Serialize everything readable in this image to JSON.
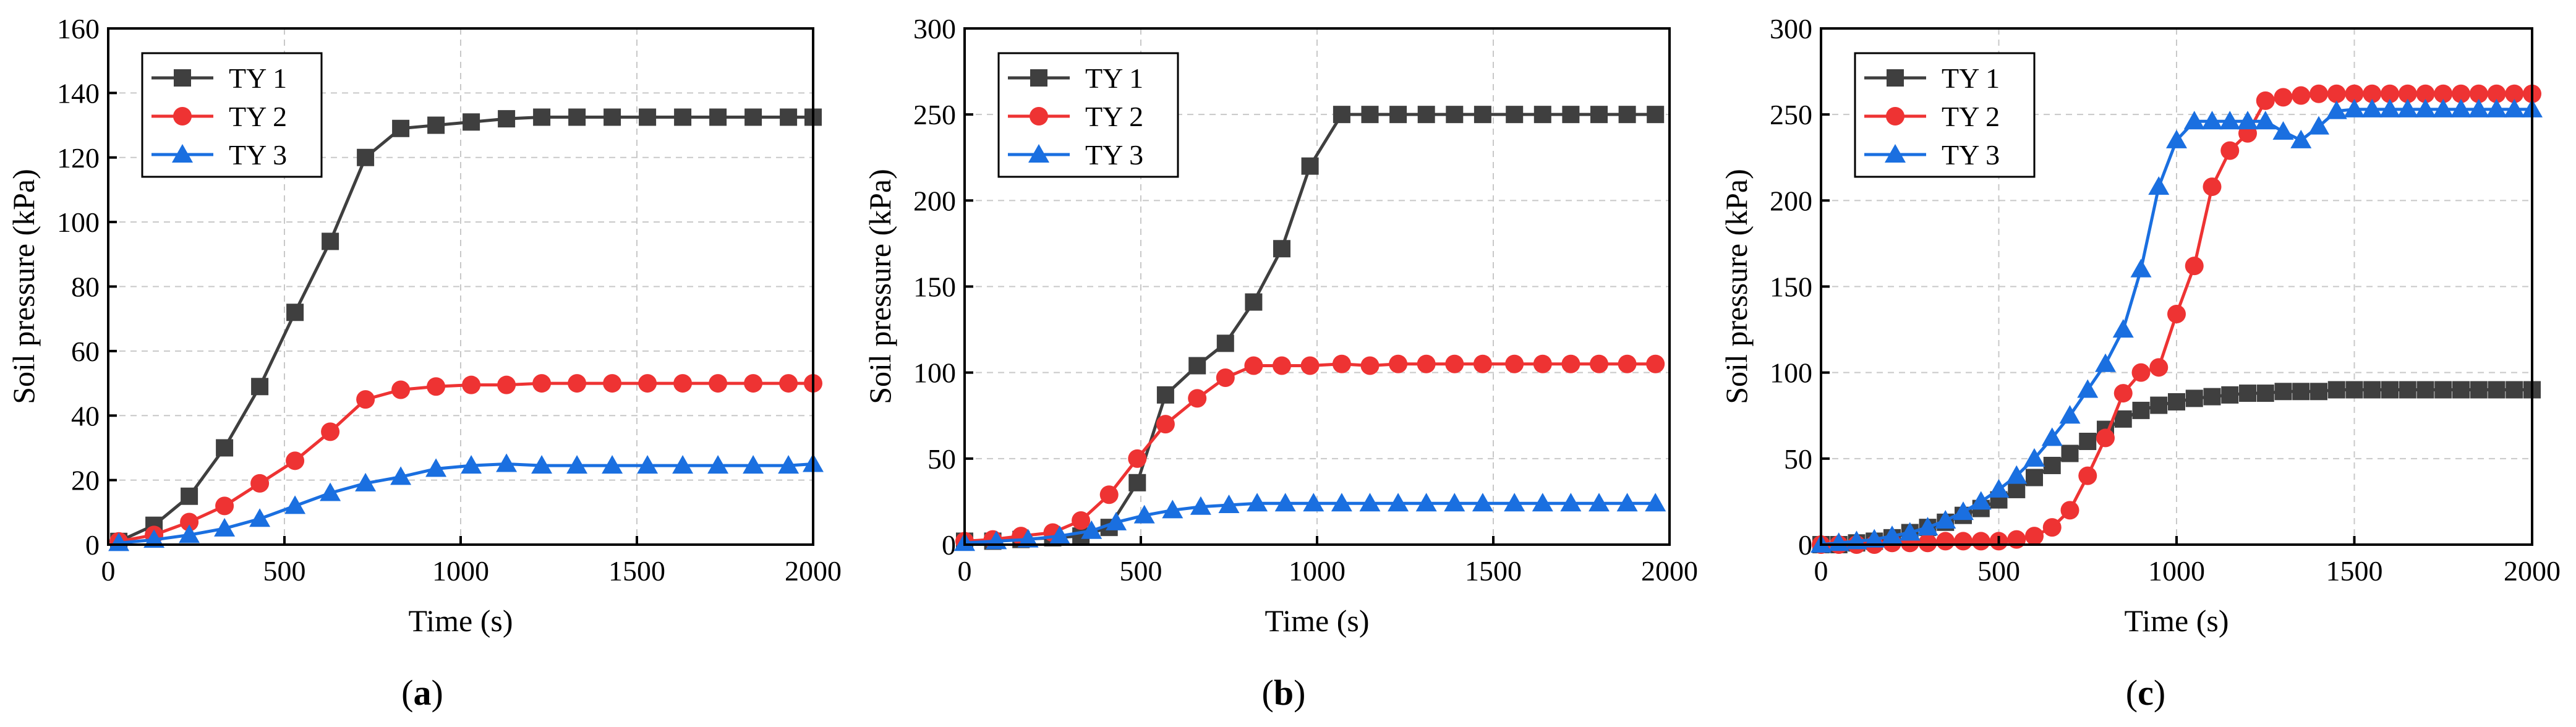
{
  "chart_data": [
    {
      "type": "line",
      "panel_label": "a",
      "xlabel": "Time (s)",
      "ylabel": "Soil pressure (kPa)",
      "xlim": [
        0,
        2000
      ],
      "ylim": [
        0,
        160
      ],
      "xticks": [
        0,
        500,
        1000,
        1500,
        2000
      ],
      "yticks": [
        0,
        20,
        40,
        60,
        80,
        100,
        120,
        140,
        160
      ],
      "grid": true,
      "legend_position": "top-left",
      "series": [
        {
          "name": "TY 1",
          "color": "#3f3f3f",
          "marker": "square",
          "x": [
            30,
            130,
            230,
            330,
            430,
            530,
            630,
            730,
            830,
            930,
            1030,
            1130,
            1230,
            1330,
            1430,
            1530,
            1630,
            1730,
            1830,
            1930,
            2000
          ],
          "y": [
            1,
            6,
            15,
            30,
            49,
            72,
            94,
            120,
            129,
            130,
            131,
            132,
            132.5,
            132.5,
            132.5,
            132.5,
            132.5,
            132.5,
            132.5,
            132.5,
            132.5
          ]
        },
        {
          "name": "TY 2",
          "color": "#ee3333",
          "marker": "circle",
          "x": [
            30,
            130,
            230,
            330,
            430,
            530,
            630,
            730,
            830,
            930,
            1030,
            1130,
            1230,
            1330,
            1430,
            1530,
            1630,
            1730,
            1830,
            1930,
            2000
          ],
          "y": [
            1,
            3,
            7,
            12,
            19,
            26,
            35,
            45,
            48,
            49,
            49.5,
            49.5,
            50,
            50,
            50,
            50,
            50,
            50,
            50,
            50,
            50
          ]
        },
        {
          "name": "TY 3",
          "color": "#1a6fe0",
          "marker": "triangle",
          "x": [
            30,
            130,
            230,
            330,
            430,
            530,
            630,
            730,
            830,
            930,
            1030,
            1130,
            1230,
            1330,
            1430,
            1530,
            1630,
            1730,
            1830,
            1930,
            2000
          ],
          "y": [
            0.5,
            1.5,
            3,
            5,
            8,
            12,
            16,
            19,
            21,
            23.5,
            24.5,
            25,
            24.5,
            24.5,
            24.5,
            24.5,
            24.5,
            24.5,
            24.5,
            24.5,
            25
          ]
        }
      ]
    },
    {
      "type": "line",
      "panel_label": "b",
      "xlabel": "Time (s)",
      "ylabel": "Soil pressure (kPa)",
      "xlim": [
        0,
        2000
      ],
      "ylim": [
        0,
        300
      ],
      "xticks": [
        0,
        500,
        1000,
        1500,
        2000
      ],
      "yticks": [
        0,
        50,
        100,
        150,
        200,
        250,
        300
      ],
      "grid": true,
      "legend_position": "top-left",
      "series": [
        {
          "name": "TY 1",
          "color": "#3f3f3f",
          "marker": "square",
          "x": [
            0,
            80,
            160,
            250,
            330,
            410,
            490,
            570,
            660,
            740,
            820,
            900,
            980,
            1070,
            1150,
            1230,
            1310,
            1390,
            1470,
            1560,
            1640,
            1720,
            1800,
            1880,
            1960
          ],
          "y": [
            2,
            2,
            3,
            4,
            5,
            10,
            36,
            87,
            104,
            117,
            141,
            172,
            220,
            250,
            250,
            250,
            250,
            250,
            250,
            250,
            250,
            250,
            250,
            250,
            250
          ]
        },
        {
          "name": "TY 2",
          "color": "#ee3333",
          "marker": "circle",
          "x": [
            0,
            80,
            160,
            250,
            330,
            410,
            490,
            570,
            660,
            740,
            820,
            900,
            980,
            1070,
            1150,
            1230,
            1310,
            1390,
            1470,
            1560,
            1640,
            1720,
            1800,
            1880,
            1960
          ],
          "y": [
            2,
            3,
            5,
            7,
            14,
            29,
            50,
            70,
            85,
            97,
            104,
            104,
            104,
            105,
            104,
            105,
            105,
            105,
            105,
            105,
            105,
            105,
            105,
            105,
            105
          ]
        },
        {
          "name": "TY 3",
          "color": "#1a6fe0",
          "marker": "triangle",
          "x": [
            0,
            90,
            180,
            270,
            360,
            430,
            510,
            590,
            670,
            750,
            830,
            910,
            990,
            1070,
            1150,
            1230,
            1310,
            1390,
            1470,
            1560,
            1640,
            1720,
            1800,
            1880,
            1960
          ],
          "y": [
            1,
            2,
            3,
            5,
            8,
            13,
            17,
            20,
            22,
            23,
            24,
            24,
            24,
            24,
            24,
            24,
            24,
            24,
            24,
            24,
            24,
            24,
            24,
            24,
            24
          ]
        }
      ]
    },
    {
      "type": "line",
      "panel_label": "c",
      "xlabel": "Time (s)",
      "ylabel": "Soil pressure (kPa)",
      "xlim": [
        0,
        2000
      ],
      "ylim": [
        0,
        300
      ],
      "xticks": [
        0,
        500,
        1000,
        1500,
        2000
      ],
      "yticks": [
        0,
        50,
        100,
        150,
        200,
        250,
        300
      ],
      "grid": true,
      "legend_position": "top-left",
      "series": [
        {
          "name": "TY 1",
          "color": "#3f3f3f",
          "marker": "square",
          "x": [
            0,
            50,
            100,
            150,
            200,
            250,
            300,
            350,
            400,
            450,
            500,
            550,
            600,
            650,
            700,
            750,
            800,
            850,
            900,
            950,
            1000,
            1050,
            1100,
            1150,
            1200,
            1250,
            1300,
            1350,
            1400,
            1450,
            1500,
            1550,
            1600,
            1650,
            1700,
            1750,
            1800,
            1850,
            1900,
            1950,
            2000
          ],
          "y": [
            0,
            0,
            1,
            2,
            4,
            7,
            10,
            13,
            17,
            21,
            26,
            32,
            39,
            46,
            53,
            60,
            67,
            73,
            78,
            81,
            83,
            85,
            86,
            87,
            88,
            88,
            89,
            89,
            89,
            90,
            90,
            90,
            90,
            90,
            90,
            90,
            90,
            90,
            90,
            90,
            90
          ]
        },
        {
          "name": "TY 2",
          "color": "#ee3333",
          "marker": "circle",
          "x": [
            0,
            50,
            100,
            150,
            200,
            250,
            300,
            350,
            400,
            450,
            500,
            550,
            600,
            650,
            700,
            750,
            800,
            850,
            900,
            950,
            1000,
            1050,
            1100,
            1150,
            1200,
            1250,
            1300,
            1350,
            1400,
            1450,
            1500,
            1550,
            1600,
            1650,
            1700,
            1750,
            1800,
            1850,
            1900,
            1950,
            2000
          ],
          "y": [
            0,
            0,
            0,
            0,
            1,
            1,
            1,
            2,
            2,
            2,
            2,
            3,
            5,
            10,
            20,
            40,
            62,
            88,
            100,
            103,
            134,
            162,
            208,
            229,
            239,
            258,
            260,
            261,
            262,
            262,
            262,
            262,
            262,
            262,
            262,
            262,
            262,
            262,
            262,
            262,
            262
          ]
        },
        {
          "name": "TY 3",
          "color": "#1a6fe0",
          "marker": "triangle",
          "x": [
            0,
            50,
            100,
            150,
            200,
            250,
            300,
            350,
            400,
            450,
            500,
            550,
            600,
            650,
            700,
            750,
            800,
            850,
            900,
            950,
            1000,
            1050,
            1100,
            1150,
            1200,
            1250,
            1300,
            1350,
            1400,
            1450,
            1500,
            1550,
            1600,
            1650,
            1700,
            1750,
            1800,
            1850,
            1900,
            1950,
            2000
          ],
          "y": [
            0,
            1,
            2,
            3,
            5,
            7,
            10,
            14,
            19,
            25,
            32,
            40,
            50,
            62,
            75,
            90,
            105,
            125,
            160,
            208,
            235,
            246,
            246,
            246,
            246,
            246,
            240,
            235,
            243,
            252,
            253,
            253,
            253,
            253,
            253,
            253,
            253,
            253,
            253,
            253,
            253
          ]
        }
      ]
    }
  ]
}
